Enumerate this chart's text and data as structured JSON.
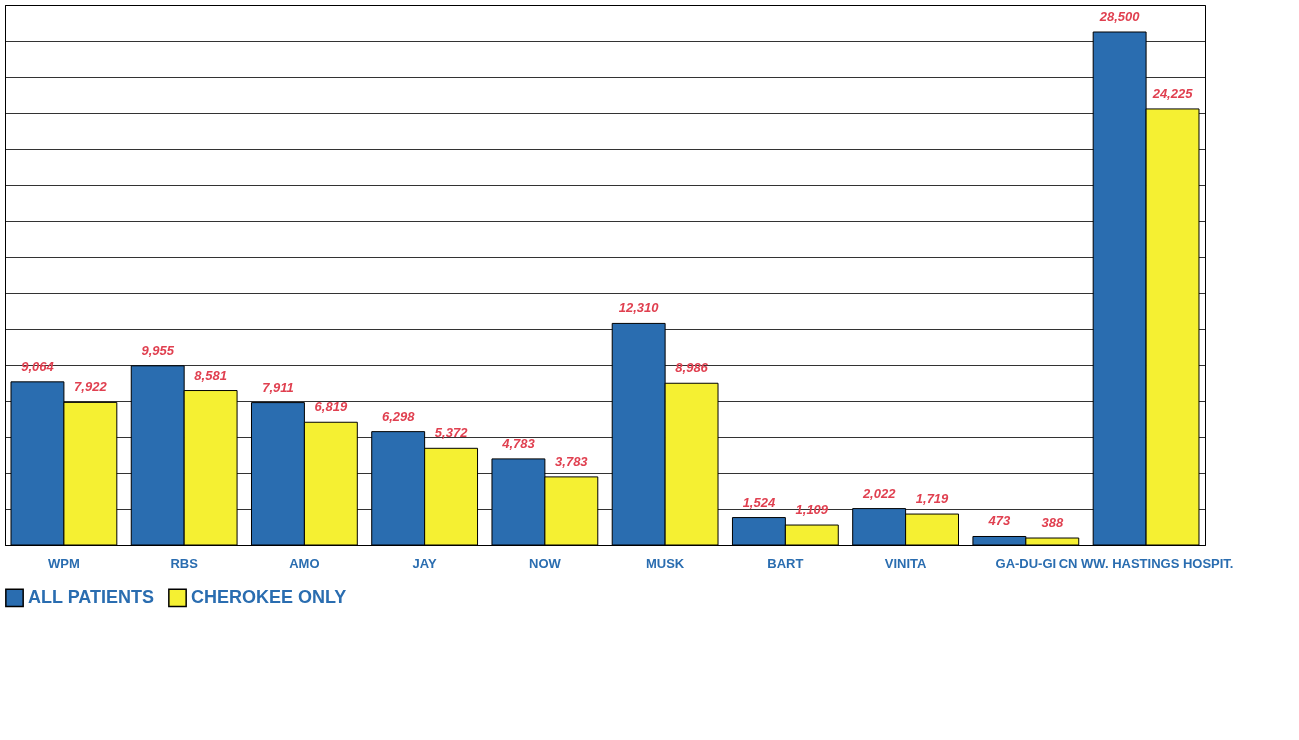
{
  "chart_data": {
    "type": "bar",
    "categories": [
      "WPM",
      "RBS",
      "AMO",
      "JAY",
      "NOW",
      "MUSK",
      "BART",
      "VINITA",
      "GA-DU-GI",
      "CN WW. HASTINGS HOSPIT."
    ],
    "series": [
      {
        "name": "ALL PATIENTS",
        "color": "#2a6db0",
        "values": [
          9064,
          9955,
          7911,
          6298,
          4783,
          12310,
          1524,
          2022,
          473,
          28500
        ],
        "value_labels": [
          "9,064",
          "9,955",
          "7,911",
          "6,298",
          "4,783",
          "12,310",
          "1,524",
          "2,022",
          "473",
          "28,500"
        ]
      },
      {
        "name": "CHEROKEE ONLY",
        "color": "#f5f032",
        "values": [
          7922,
          8581,
          6819,
          5372,
          3783,
          8986,
          1109,
          1719,
          388,
          24225
        ],
        "value_labels": [
          "7,922",
          "8,581",
          "6,819",
          "5,372",
          "3,783",
          "8,986",
          "1,109",
          "1,719",
          "388",
          "24,225"
        ]
      }
    ],
    "grid": "y",
    "legend": "bottom",
    "tick_labels": "x"
  }
}
